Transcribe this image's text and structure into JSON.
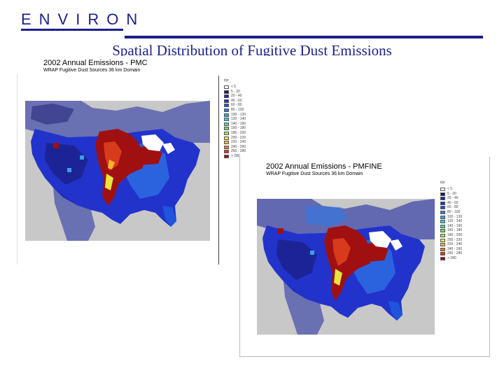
{
  "header": {
    "logo_text": "ENVIRON",
    "title": "Spatial Distribution of Fugitive Dust Emissions",
    "brand_color": "#1a1f8c"
  },
  "maps": [
    {
      "title": "2002 Annual Emissions  - PMC",
      "subtitle": "WRAP Fugitive Dust Sources     36 km Domain",
      "legend_unit": "t/yr",
      "legend": [
        {
          "label": "< 5",
          "color": "#ffffff"
        },
        {
          "label": "5 - 20",
          "color": "#191970"
        },
        {
          "label": "20 - 40",
          "color": "#1e2aa0"
        },
        {
          "label": "40 - 60",
          "color": "#2233cc"
        },
        {
          "label": "60 - 80",
          "color": "#1f55dd"
        },
        {
          "label": "80 - 100",
          "color": "#2f78e6"
        },
        {
          "label": "100 - 120",
          "color": "#38a0e6"
        },
        {
          "label": "120 - 140",
          "color": "#3ccbd8"
        },
        {
          "label": "140 - 160",
          "color": "#49d6a8"
        },
        {
          "label": "160 - 180",
          "color": "#6ad66a"
        },
        {
          "label": "180 - 200",
          "color": "#a8e04a"
        },
        {
          "label": "200 - 220",
          "color": "#e6e63c"
        },
        {
          "label": "220 - 240",
          "color": "#f0b430"
        },
        {
          "label": "240 - 260",
          "color": "#e67822"
        },
        {
          "label": "260 - 280",
          "color": "#d83a1c"
        },
        {
          "label": "> 280",
          "color": "#a01010"
        }
      ]
    },
    {
      "title": "2002 Annual Emissions  - PMFINE",
      "subtitle": "WRAP Fugitive Dust Sources     36 km Domain",
      "legend_unit": "t/yr",
      "legend": [
        {
          "label": "< 5",
          "color": "#ffffff"
        },
        {
          "label": "5 - 20",
          "color": "#191970"
        },
        {
          "label": "20 - 40",
          "color": "#1e2aa0"
        },
        {
          "label": "40 - 60",
          "color": "#2233cc"
        },
        {
          "label": "60 - 80",
          "color": "#1f55dd"
        },
        {
          "label": "80 - 100",
          "color": "#2f78e6"
        },
        {
          "label": "100 - 120",
          "color": "#38a0e6"
        },
        {
          "label": "120 - 140",
          "color": "#3ccbd8"
        },
        {
          "label": "140 - 160",
          "color": "#49d6a8"
        },
        {
          "label": "160 - 180",
          "color": "#6ad66a"
        },
        {
          "label": "180 - 200",
          "color": "#a8e04a"
        },
        {
          "label": "200 - 220",
          "color": "#e6e63c"
        },
        {
          "label": "220 - 240",
          "color": "#f0b430"
        },
        {
          "label": "240 - 260",
          "color": "#e67822"
        },
        {
          "label": "260 - 280",
          "color": "#d83a1c"
        },
        {
          "label": "> 280",
          "color": "#a01010"
        }
      ]
    }
  ]
}
